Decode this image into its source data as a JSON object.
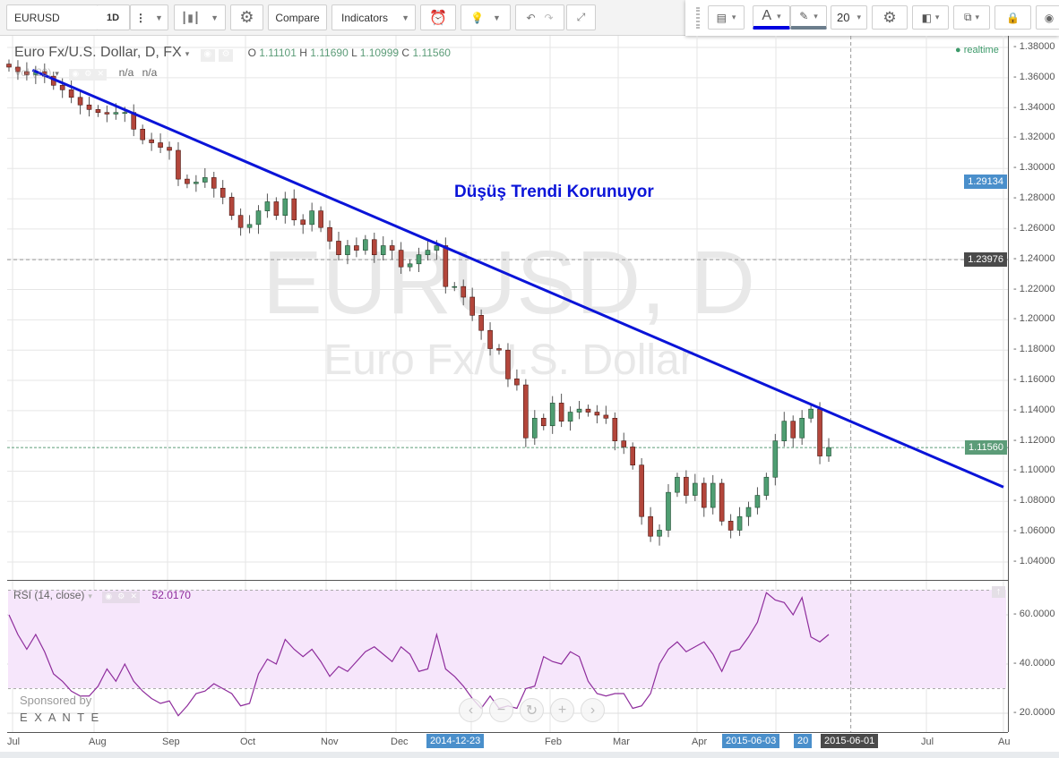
{
  "toolbar": {
    "symbol": "EURUSD",
    "interval": "1D",
    "compare": "Compare",
    "indicators": "Indicators"
  },
  "drawing_toolbar": {
    "font_size": "20",
    "text_color": "#0000e0",
    "line_color": "#6b7d8c"
  },
  "legend": {
    "title": "Euro Fx/U.S. Dollar, D, FX",
    "o_label": "O",
    "o": "1.11101",
    "h_label": "H",
    "h": "1.11690",
    "l_label": "L",
    "l": "1.10999",
    "c_label": "C",
    "c": "1.11560",
    "vol_label": "Vol (20)",
    "vol_a": "n/a",
    "vol_b": "n/a",
    "realtime": "realtime"
  },
  "watermark": {
    "line1": "EURUSD, D",
    "line2": "Euro Fx/U.S. Dollar"
  },
  "annotation": {
    "text": "Düşüş Trendi Korunuyor",
    "color": "#0a14d8"
  },
  "price_axis": {
    "ticks": [
      "1.38000",
      "1.36000",
      "1.34000",
      "1.32000",
      "1.30000",
      "1.28000",
      "1.26000",
      "1.24000",
      "1.22000",
      "1.20000",
      "1.18000",
      "1.16000",
      "1.14000",
      "1.12000",
      "1.10000",
      "1.08000",
      "1.06000",
      "1.04000"
    ],
    "tags": [
      {
        "value": "1.29134",
        "color": "#4a8fcb"
      },
      {
        "value": "1.23976",
        "color": "#4a4a4a"
      },
      {
        "value": "1.11560",
        "color": "#5c9c78"
      }
    ]
  },
  "rsi": {
    "label": "RSI (14, close)",
    "value": "52.0170",
    "ticks": [
      "60.0000",
      "40.0000",
      "20.0000"
    ],
    "band": [
      30,
      70
    ],
    "color": "#8e2c9c"
  },
  "time_axis": {
    "ticks": [
      "Jul",
      "Aug",
      "Sep",
      "Oct",
      "Nov",
      "Dec",
      "Feb",
      "Mar",
      "Apr",
      "Jul",
      "Au"
    ],
    "tags": [
      {
        "value": "2014-12-23",
        "color": "#4a8fcb"
      },
      {
        "value": "2015-06-03",
        "color": "#4a8fcb"
      },
      {
        "value": "20",
        "color": "#4a8fcb"
      },
      {
        "value": "2015-06-01",
        "color": "#4a4a4a"
      }
    ]
  },
  "sponsor": {
    "text": "Sponsored by",
    "brand": "E X A N T E"
  },
  "chart_data": {
    "type": "candlestick",
    "symbol": "EURUSD",
    "timeframe": "D",
    "ylim": [
      1.03,
      1.39
    ],
    "closes": [
      1.367,
      1.364,
      1.362,
      1.364,
      1.361,
      1.355,
      1.352,
      1.347,
      1.342,
      1.339,
      1.337,
      1.336,
      1.337,
      1.337,
      1.326,
      1.319,
      1.317,
      1.314,
      1.312,
      1.293,
      1.29,
      1.291,
      1.294,
      1.287,
      1.281,
      1.269,
      1.261,
      1.263,
      1.272,
      1.278,
      1.269,
      1.28,
      1.266,
      1.263,
      1.272,
      1.261,
      1.252,
      1.243,
      1.249,
      1.246,
      1.253,
      1.243,
      1.249,
      1.246,
      1.235,
      1.237,
      1.243,
      1.246,
      1.249,
      1.222,
      1.222,
      1.215,
      1.203,
      1.193,
      1.181,
      1.18,
      1.161,
      1.157,
      1.122,
      1.135,
      1.13,
      1.145,
      1.133,
      1.139,
      1.141,
      1.139,
      1.137,
      1.135,
      1.12,
      1.116,
      1.104,
      1.07,
      1.057,
      1.061,
      1.086,
      1.096,
      1.084,
      1.092,
      1.076,
      1.092,
      1.067,
      1.061,
      1.07,
      1.076,
      1.084,
      1.096,
      1.12,
      1.133,
      1.122,
      1.135,
      1.141,
      1.11,
      1.1156
    ],
    "rsi_values": [
      60,
      52,
      46,
      52,
      45,
      36,
      33,
      29,
      27,
      27,
      31,
      38,
      33,
      40,
      33,
      29,
      26,
      24,
      25,
      19,
      23,
      28,
      29,
      32,
      30,
      28,
      23,
      24,
      36,
      42,
      40,
      50,
      46,
      43,
      46,
      41,
      35,
      39,
      37,
      41,
      45,
      47,
      44,
      41,
      47,
      44,
      37,
      38,
      52,
      38,
      35,
      31,
      26,
      22,
      27,
      22,
      23,
      22,
      30,
      31,
      43,
      41,
      40,
      45,
      43,
      33,
      28,
      27,
      28,
      28,
      22,
      23,
      28,
      40,
      46,
      49,
      45,
      47,
      49,
      44,
      37,
      45,
      46,
      51,
      57,
      69,
      66,
      65,
      60,
      67,
      51,
      49,
      52
    ],
    "trendline": {
      "start": {
        "date": "2014-07-09",
        "price": 1.365
      },
      "end": {
        "date": "2015-08-01",
        "price": 1.0895
      },
      "color": "#0a14d8"
    },
    "crosshair": {
      "price": 1.23976,
      "date": "2015-06-01"
    },
    "last_price": 1.1156,
    "up_color": "#4f9e72",
    "down_color": "#b3463b"
  }
}
